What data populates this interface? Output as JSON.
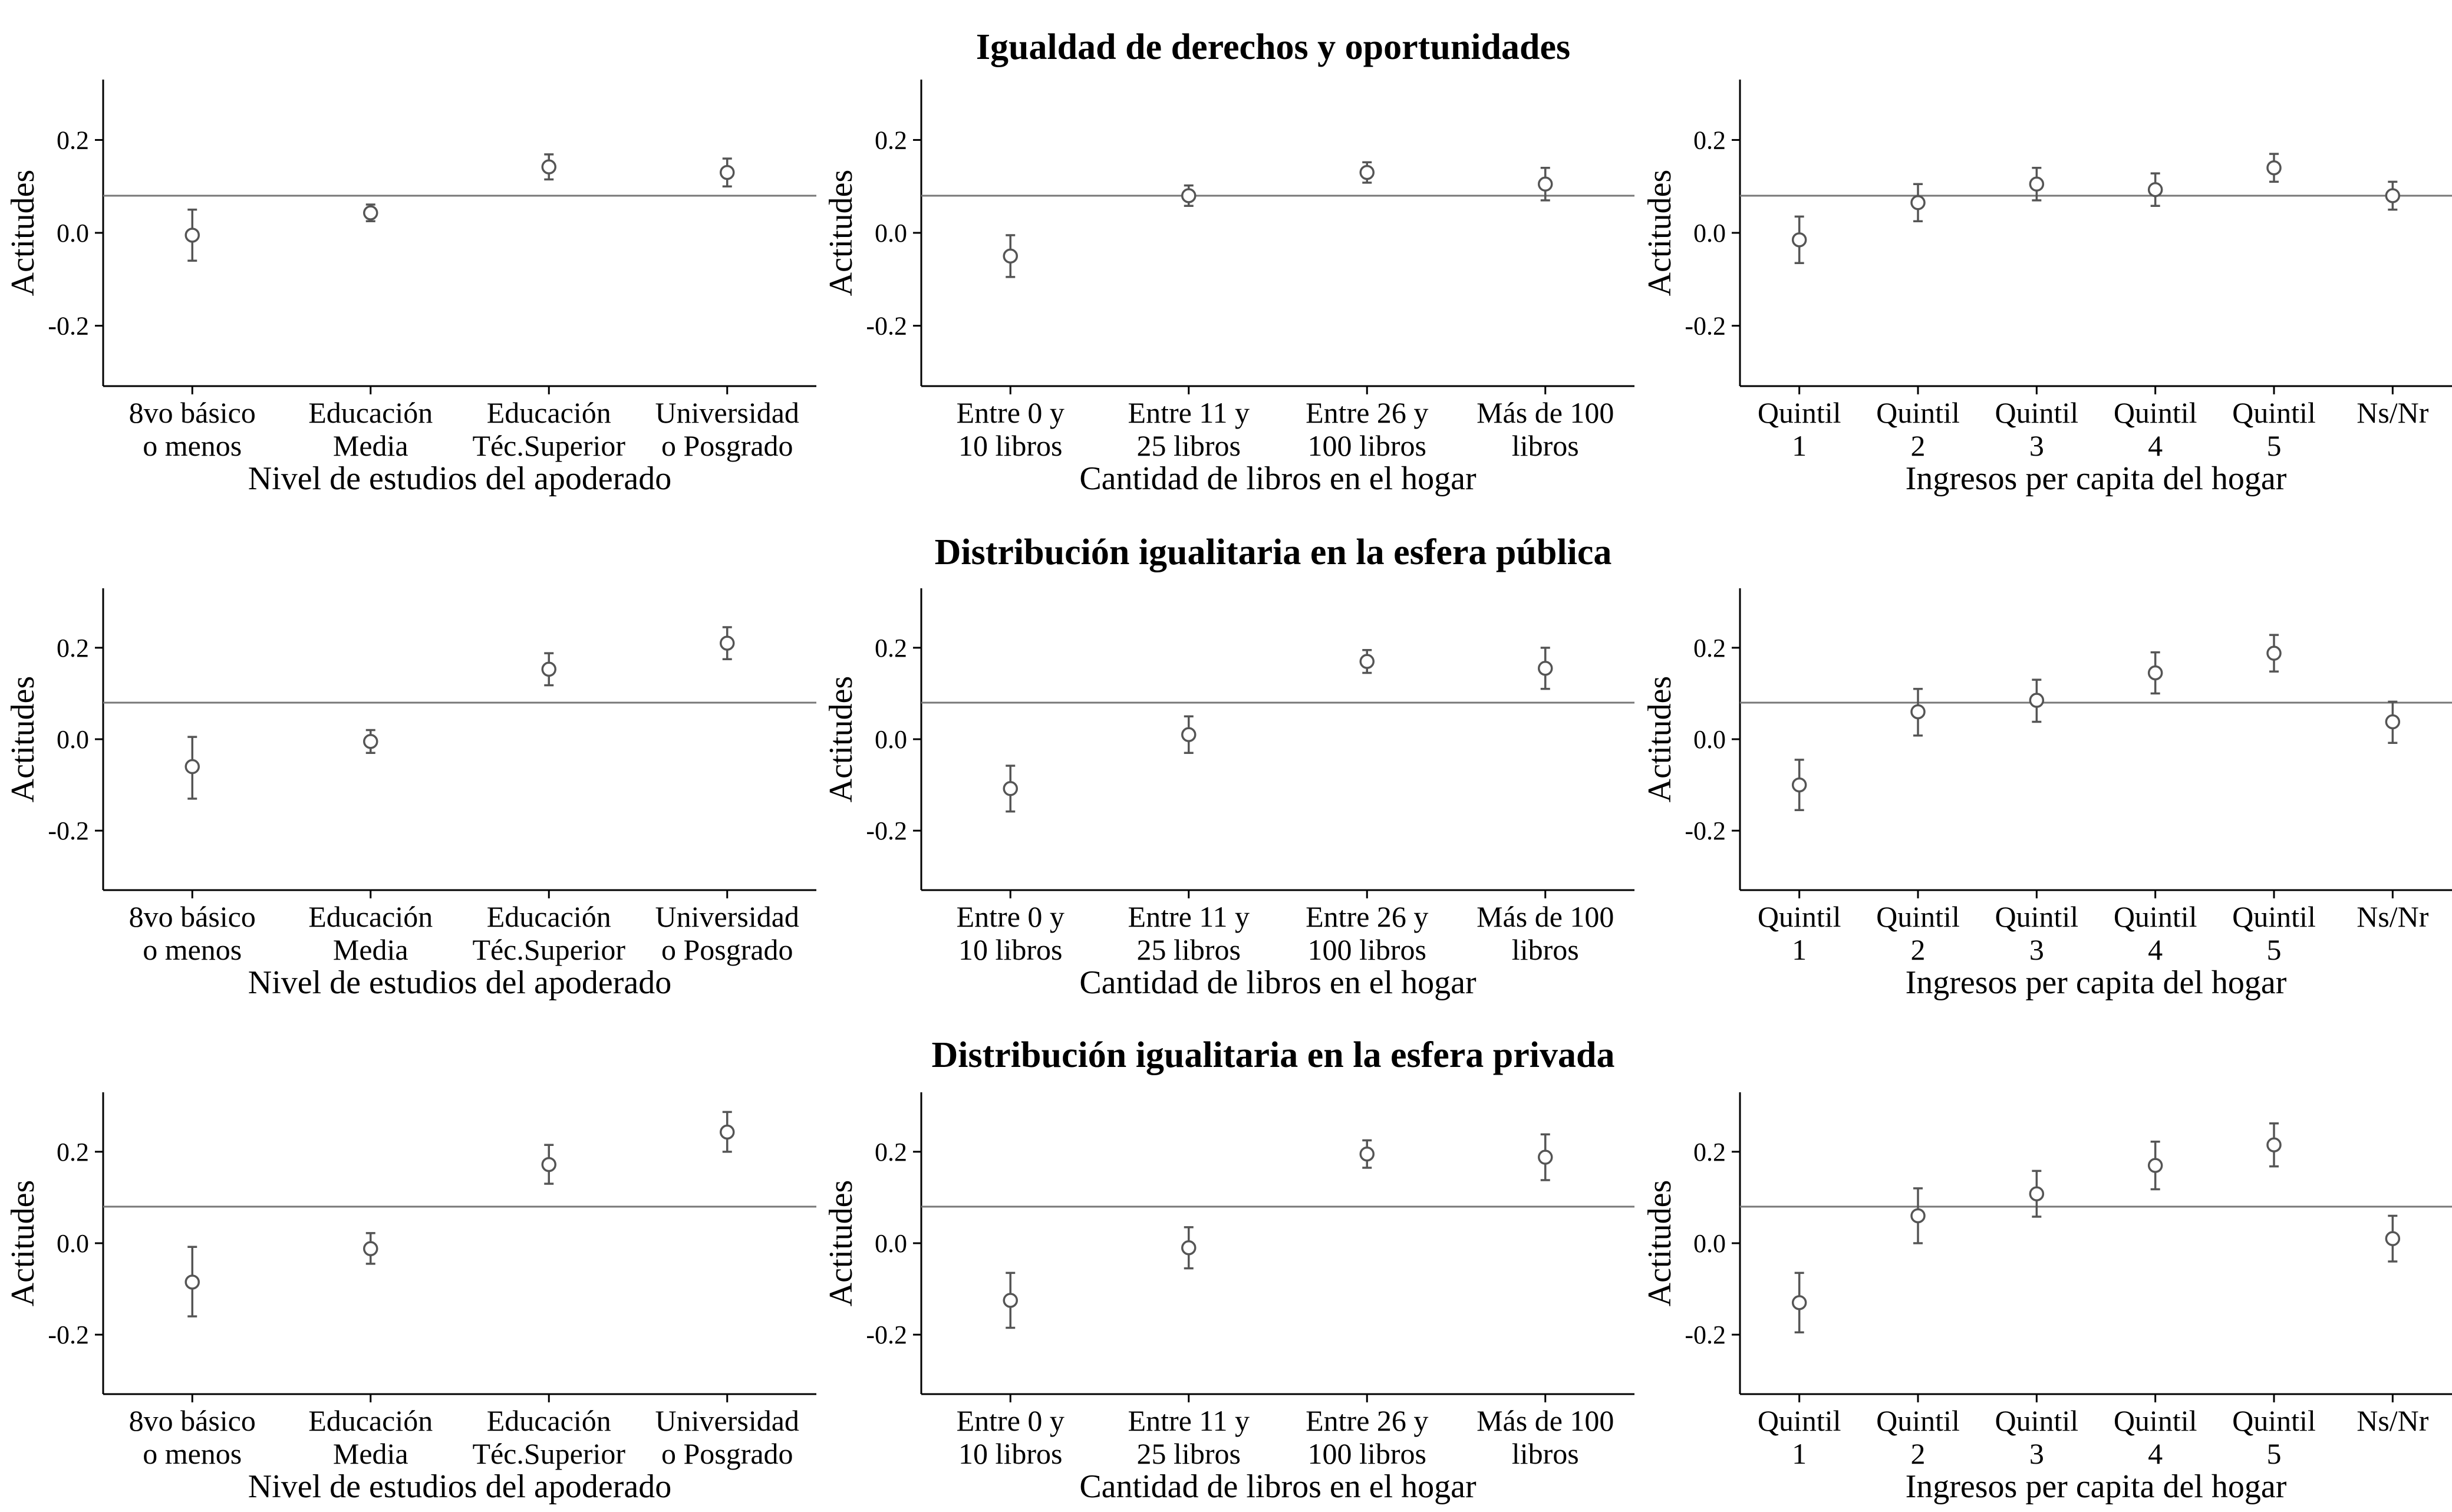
{
  "row_titles": [
    "Igualdad de derechos y oportunidades",
    "Distribución igualitaria en la esfera pública",
    "Distribución igualitaria en la esfera privada"
  ],
  "ylabel": "Actitudes",
  "xlabels": [
    "Nivel de estudios del apoderado",
    "Cantidad de libros en el hogar",
    "Ingresos per capita del hogar"
  ],
  "y_ticks": [
    "0.2",
    "0.0",
    "-0.2"
  ],
  "ylim": [
    -0.33,
    0.33
  ],
  "reference_line": 0.08,
  "point_color": "#555555",
  "chart_data": [
    {
      "type": "scatter",
      "row": 1,
      "col": 1,
      "title": "Igualdad de derechos y oportunidades",
      "xlabel": "Nivel de estudios del apoderado",
      "ylabel": "Actitudes",
      "ylim": [
        -0.33,
        0.33
      ],
      "categories": [
        [
          "8vo básico",
          "o menos"
        ],
        [
          "Educación",
          "Media"
        ],
        [
          "Educación",
          "Téc.Superior"
        ],
        [
          "Universidad",
          "o Posgrado"
        ]
      ],
      "values": [
        -0.005,
        0.043,
        0.142,
        0.13
      ],
      "lower": [
        -0.06,
        0.025,
        0.115,
        0.1
      ],
      "upper": [
        0.05,
        0.061,
        0.169,
        0.16
      ],
      "reference": 0.08
    },
    {
      "type": "scatter",
      "row": 1,
      "col": 2,
      "title": "Igualdad de derechos y oportunidades",
      "xlabel": "Cantidad de libros en el hogar",
      "ylabel": "Actitudes",
      "ylim": [
        -0.33,
        0.33
      ],
      "categories": [
        [
          "Entre 0 y",
          "10 libros"
        ],
        [
          "Entre 11 y",
          "25 libros"
        ],
        [
          "Entre 26 y",
          "100 libros"
        ],
        [
          "Más de 100",
          "libros"
        ]
      ],
      "values": [
        -0.05,
        0.08,
        0.13,
        0.105
      ],
      "lower": [
        -0.095,
        0.058,
        0.108,
        0.07
      ],
      "upper": [
        -0.005,
        0.102,
        0.152,
        0.14
      ],
      "reference": 0.08
    },
    {
      "type": "scatter",
      "row": 1,
      "col": 3,
      "title": "Igualdad de derechos y oportunidades",
      "xlabel": "Ingresos per capita del hogar",
      "ylabel": "Actitudes",
      "ylim": [
        -0.33,
        0.33
      ],
      "categories": [
        [
          "Quintil",
          "1"
        ],
        [
          "Quintil",
          "2"
        ],
        [
          "Quintil",
          "3"
        ],
        [
          "Quintil",
          "4"
        ],
        [
          "Quintil",
          "5"
        ],
        [
          "Ns/Nr"
        ]
      ],
      "values": [
        -0.015,
        0.065,
        0.105,
        0.093,
        0.14,
        0.08
      ],
      "lower": [
        -0.065,
        0.025,
        0.07,
        0.058,
        0.11,
        0.05
      ],
      "upper": [
        0.035,
        0.105,
        0.14,
        0.128,
        0.17,
        0.11
      ],
      "reference": 0.08
    },
    {
      "type": "scatter",
      "row": 2,
      "col": 1,
      "title": "Distribución igualitaria en la esfera pública",
      "xlabel": "Nivel de estudios del apoderado",
      "ylabel": "Actitudes",
      "ylim": [
        -0.33,
        0.33
      ],
      "categories": [
        [
          "8vo básico",
          "o menos"
        ],
        [
          "Educación",
          "Media"
        ],
        [
          "Educación",
          "Téc.Superior"
        ],
        [
          "Universidad",
          "o Posgrado"
        ]
      ],
      "values": [
        -0.06,
        -0.005,
        0.153,
        0.21
      ],
      "lower": [
        -0.13,
        -0.03,
        0.118,
        0.175
      ],
      "upper": [
        0.005,
        0.02,
        0.188,
        0.245
      ],
      "reference": 0.08
    },
    {
      "type": "scatter",
      "row": 2,
      "col": 2,
      "title": "Distribución igualitaria en la esfera pública",
      "xlabel": "Cantidad de libros en el hogar",
      "ylabel": "Actitudes",
      "ylim": [
        -0.33,
        0.33
      ],
      "categories": [
        [
          "Entre 0 y",
          "10 libros"
        ],
        [
          "Entre 11 y",
          "25 libros"
        ],
        [
          "Entre 26 y",
          "100 libros"
        ],
        [
          "Más de 100",
          "libros"
        ]
      ],
      "values": [
        -0.108,
        0.01,
        0.17,
        0.155
      ],
      "lower": [
        -0.158,
        -0.03,
        0.145,
        0.11
      ],
      "upper": [
        -0.058,
        0.05,
        0.195,
        0.2
      ],
      "reference": 0.08
    },
    {
      "type": "scatter",
      "row": 2,
      "col": 3,
      "title": "Distribución igualitaria en la esfera pública",
      "xlabel": "Ingresos per capita del hogar",
      "ylabel": "Actitudes",
      "ylim": [
        -0.33,
        0.33
      ],
      "categories": [
        [
          "Quintil",
          "1"
        ],
        [
          "Quintil",
          "2"
        ],
        [
          "Quintil",
          "3"
        ],
        [
          "Quintil",
          "4"
        ],
        [
          "Quintil",
          "5"
        ],
        [
          "Ns/Nr"
        ]
      ],
      "values": [
        -0.1,
        0.06,
        0.085,
        0.145,
        0.188,
        0.038
      ],
      "lower": [
        -0.155,
        0.008,
        0.038,
        0.1,
        0.148,
        -0.008
      ],
      "upper": [
        -0.045,
        0.11,
        0.13,
        0.19,
        0.228,
        0.082
      ],
      "reference": 0.08
    },
    {
      "type": "scatter",
      "row": 3,
      "col": 1,
      "title": "Distribución igualitaria en la esfera privada",
      "xlabel": "Nivel de estudios del apoderado",
      "ylabel": "Actitudes",
      "ylim": [
        -0.33,
        0.33
      ],
      "categories": [
        [
          "8vo básico",
          "o menos"
        ],
        [
          "Educación",
          "Media"
        ],
        [
          "Educación",
          "Téc.Superior"
        ],
        [
          "Universidad",
          "o Posgrado"
        ]
      ],
      "values": [
        -0.085,
        -0.012,
        0.172,
        0.243
      ],
      "lower": [
        -0.16,
        -0.045,
        0.13,
        0.2
      ],
      "upper": [
        -0.008,
        0.022,
        0.215,
        0.287
      ],
      "reference": 0.08
    },
    {
      "type": "scatter",
      "row": 3,
      "col": 2,
      "title": "Distribución igualitaria en la esfera privada",
      "xlabel": "Cantidad de libros en el hogar",
      "ylabel": "Actitudes",
      "ylim": [
        -0.33,
        0.33
      ],
      "categories": [
        [
          "Entre 0 y",
          "10 libros"
        ],
        [
          "Entre 11 y",
          "25 libros"
        ],
        [
          "Entre 26 y",
          "100 libros"
        ],
        [
          "Más de 100",
          "libros"
        ]
      ],
      "values": [
        -0.125,
        -0.01,
        0.195,
        0.188
      ],
      "lower": [
        -0.185,
        -0.055,
        0.165,
        0.138
      ],
      "upper": [
        -0.065,
        0.035,
        0.225,
        0.238
      ],
      "reference": 0.08
    },
    {
      "type": "scatter",
      "row": 3,
      "col": 3,
      "title": "Distribución igualitaria en la esfera privada",
      "xlabel": "Ingresos per capita del hogar",
      "ylabel": "Actitudes",
      "ylim": [
        -0.33,
        0.33
      ],
      "categories": [
        [
          "Quintil",
          "1"
        ],
        [
          "Quintil",
          "2"
        ],
        [
          "Quintil",
          "3"
        ],
        [
          "Quintil",
          "4"
        ],
        [
          "Quintil",
          "5"
        ],
        [
          "Ns/Nr"
        ]
      ],
      "values": [
        -0.13,
        0.06,
        0.108,
        0.17,
        0.215,
        0.01
      ],
      "lower": [
        -0.195,
        0.0,
        0.058,
        0.118,
        0.168,
        -0.04
      ],
      "upper": [
        -0.065,
        0.12,
        0.158,
        0.222,
        0.262,
        0.06
      ],
      "reference": 0.08
    }
  ]
}
